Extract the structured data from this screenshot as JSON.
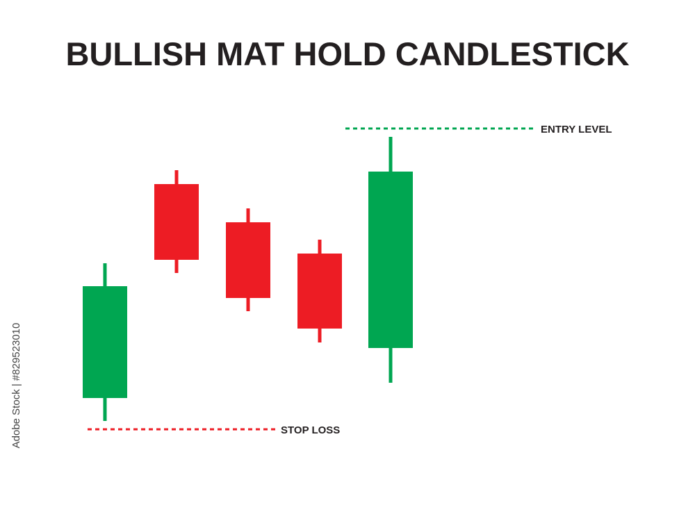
{
  "header": {
    "title": "BULLISH MAT HOLD CANDLESTICK"
  },
  "labels": {
    "entry": "ENTRY LEVEL",
    "stop": "STOP LOSS"
  },
  "watermark": "Adobe Stock | #829523010"
}
